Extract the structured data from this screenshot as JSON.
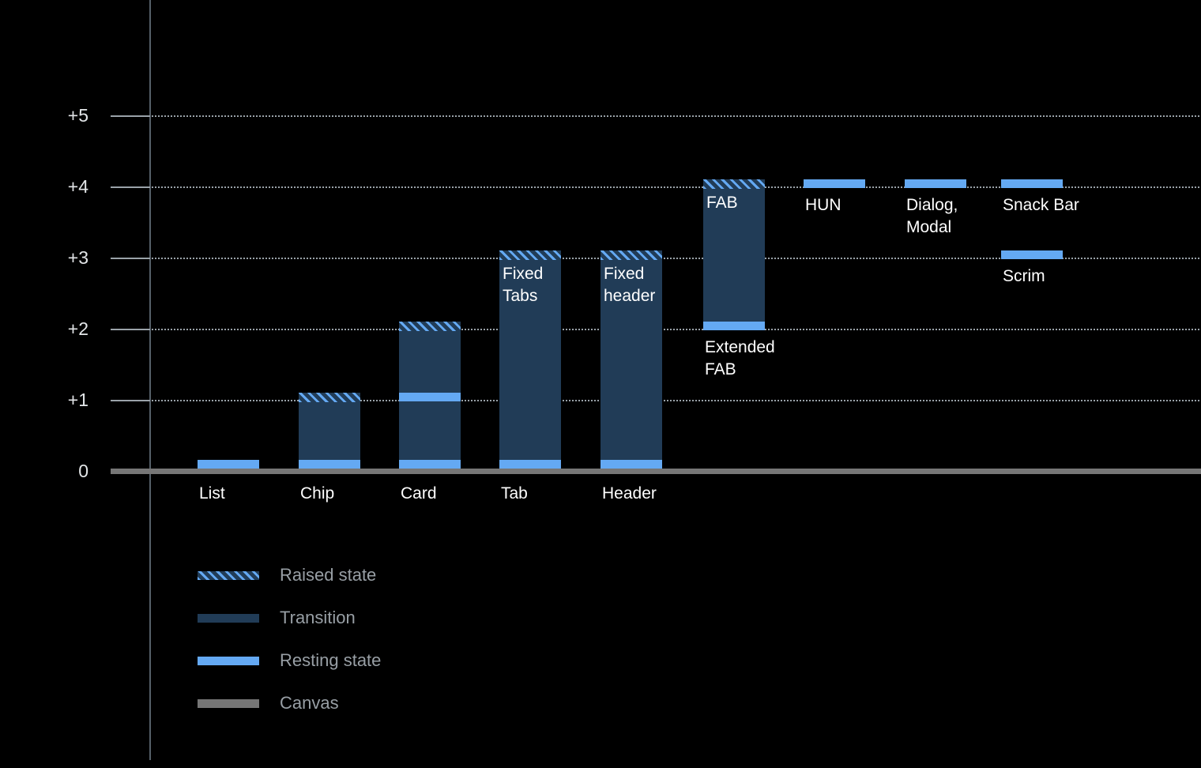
{
  "chart_data": {
    "type": "bar",
    "description": "Elevation diagram of UI components (waterfall-style stacked bars over dotted elevation gridlines)",
    "y_axis": {
      "range": [
        0,
        5.5
      ],
      "grid": "dotted",
      "ticks": [
        {
          "label": "+5",
          "elev": 5
        },
        {
          "label": "+4",
          "elev": 4
        },
        {
          "label": "+3",
          "elev": 3
        },
        {
          "label": "+2",
          "elev": 2
        },
        {
          "label": "+1",
          "elev": 1
        },
        {
          "label": "0",
          "elev": 0
        }
      ]
    },
    "columns": [
      {
        "name": "List",
        "segments": [
          {
            "type": "resting",
            "elev": 0
          }
        ],
        "labels": [
          {
            "text": "List",
            "placement": "below-baseline"
          }
        ]
      },
      {
        "name": "Chip",
        "segments": [
          {
            "type": "transition",
            "from": 0,
            "to": 1
          },
          {
            "type": "raised",
            "elev": 1
          },
          {
            "type": "resting",
            "elev": 0
          }
        ],
        "labels": [
          {
            "text": "Chip",
            "placement": "below-baseline"
          }
        ]
      },
      {
        "name": "Card",
        "segments": [
          {
            "type": "transition",
            "from": 0,
            "to": 2
          },
          {
            "type": "raised",
            "elev": 2
          },
          {
            "type": "resting",
            "elev": 0
          },
          {
            "type": "resting",
            "elev": 1
          }
        ],
        "labels": [
          {
            "text": "Card",
            "placement": "below-baseline"
          }
        ]
      },
      {
        "name": "Tab",
        "segments": [
          {
            "type": "transition",
            "from": 0,
            "to": 3
          },
          {
            "type": "raised",
            "elev": 3
          },
          {
            "type": "resting",
            "elev": 0
          }
        ],
        "labels": [
          {
            "text": "Tab",
            "placement": "below-baseline"
          },
          {
            "text": [
              "Fixed",
              "Tabs"
            ],
            "placement": "inside-top",
            "at_elev": 3
          }
        ]
      },
      {
        "name": "Header",
        "segments": [
          {
            "type": "transition",
            "from": 0,
            "to": 3
          },
          {
            "type": "raised",
            "elev": 3
          },
          {
            "type": "resting",
            "elev": 0
          }
        ],
        "labels": [
          {
            "text": "Header",
            "placement": "below-baseline"
          },
          {
            "text": [
              "Fixed",
              "header"
            ],
            "placement": "inside-top",
            "at_elev": 3
          }
        ]
      },
      {
        "name": "Extended FAB",
        "segments": [
          {
            "type": "transition",
            "from": 2,
            "to": 4
          },
          {
            "type": "raised",
            "elev": 4
          },
          {
            "type": "resting",
            "elev": 2
          }
        ],
        "labels": [
          {
            "text": "FAB",
            "placement": "inside-top",
            "at_elev": 4
          },
          {
            "text": [
              "Extended",
              "FAB"
            ],
            "placement": "below-bar",
            "at_elev": 2
          }
        ]
      },
      {
        "name": "HUN",
        "segments": [
          {
            "type": "resting",
            "elev": 4
          }
        ],
        "labels": [
          {
            "text": "HUN",
            "placement": "below-bar",
            "at_elev": 4
          }
        ]
      },
      {
        "name": "Dialog, Modal",
        "segments": [
          {
            "type": "resting",
            "elev": 4
          }
        ],
        "labels": [
          {
            "text": [
              "Dialog,",
              "Modal"
            ],
            "placement": "below-bar",
            "at_elev": 4
          }
        ]
      },
      {
        "name": "Snack Bar / Scrim",
        "segments": [
          {
            "type": "resting",
            "elev": 4
          },
          {
            "type": "resting",
            "elev": 3
          }
        ],
        "labels": [
          {
            "text": "Snack Bar",
            "placement": "below-bar",
            "at_elev": 4
          },
          {
            "text": "Scrim",
            "placement": "below-bar",
            "at_elev": 3
          }
        ]
      }
    ],
    "legend": [
      {
        "label": "Raised state",
        "swatch": "raised"
      },
      {
        "label": "Transition",
        "swatch": "transition"
      },
      {
        "label": "Resting state",
        "swatch": "resting"
      },
      {
        "label": "Canvas",
        "swatch": "canvas"
      }
    ],
    "colors": {
      "background": "#000000",
      "transition": "#213c57",
      "resting": "#64a9f3",
      "canvas": "#767676",
      "axis": "#566069",
      "grid": "#9aa2a9",
      "tick_label": "#e3e6e8",
      "column_label": "#ffffff",
      "legend_label": "#989fa5"
    }
  }
}
